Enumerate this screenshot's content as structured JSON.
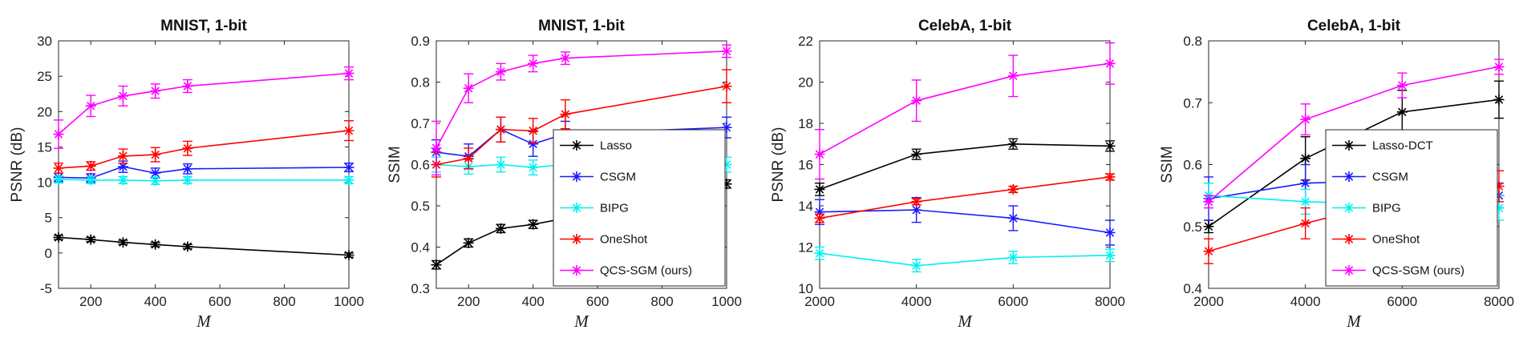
{
  "colors": {
    "Lasso": "#000000",
    "Lasso-DCT": "#000000",
    "CSGM": "#1a1aff",
    "BIPG": "#00f0f0",
    "OneShot": "#ff0000",
    "QCS-SGM (ours)": "#ff00ff"
  },
  "chart_data": [
    {
      "type": "line",
      "title": "MNIST, 1-bit",
      "xlabel": "M",
      "ylabel": "PSNR (dB)",
      "xlim": [
        100,
        1000
      ],
      "ylim": [
        -5,
        30
      ],
      "xticks": [
        200,
        400,
        600,
        800,
        1000
      ],
      "yticks": [
        -5,
        0,
        5,
        10,
        15,
        20,
        25,
        30
      ],
      "x": [
        100,
        200,
        300,
        400,
        500,
        1000
      ],
      "legend": null,
      "series": [
        {
          "name": "Lasso",
          "values": [
            2.2,
            1.9,
            1.5,
            1.2,
            0.9,
            -0.3
          ],
          "errors": [
            0.3,
            0.3,
            0.3,
            0.3,
            0.3,
            0.3
          ]
        },
        {
          "name": "CSGM",
          "values": [
            10.7,
            10.6,
            12.2,
            11.3,
            11.9,
            12.1
          ],
          "errors": [
            0.6,
            0.6,
            0.8,
            0.7,
            0.7,
            0.6
          ]
        },
        {
          "name": "BIPG",
          "values": [
            10.4,
            10.3,
            10.3,
            10.2,
            10.3,
            10.3
          ],
          "errors": [
            0.5,
            0.5,
            0.5,
            0.5,
            0.5,
            0.5
          ]
        },
        {
          "name": "OneShot",
          "values": [
            12.0,
            12.3,
            13.7,
            13.9,
            14.8,
            17.3
          ],
          "errors": [
            0.7,
            0.6,
            1.0,
            1.0,
            1.0,
            1.4
          ]
        },
        {
          "name": "QCS-SGM (ours)",
          "values": [
            16.8,
            20.8,
            22.2,
            22.9,
            23.6,
            25.4
          ],
          "errors": [
            2.0,
            1.5,
            1.4,
            1.0,
            0.9,
            0.9
          ]
        }
      ]
    },
    {
      "type": "line",
      "title": "MNIST, 1-bit",
      "xlabel": "M",
      "ylabel": "SSIM",
      "xlim": [
        100,
        1000
      ],
      "ylim": [
        0.3,
        0.9
      ],
      "xticks": [
        200,
        400,
        600,
        800,
        1000
      ],
      "yticks": [
        0.3,
        0.4,
        0.5,
        0.6,
        0.7,
        0.8,
        0.9
      ],
      "x": [
        100,
        200,
        300,
        400,
        500,
        1000
      ],
      "legend": "bottom-right",
      "series": [
        {
          "name": "Lasso",
          "values": [
            0.357,
            0.41,
            0.445,
            0.455,
            0.47,
            0.553
          ],
          "errors": [
            0.01,
            0.01,
            0.01,
            0.01,
            0.01,
            0.01
          ]
        },
        {
          "name": "CSGM",
          "values": [
            0.63,
            0.62,
            0.685,
            0.65,
            0.675,
            0.69
          ],
          "errors": [
            0.03,
            0.03,
            0.03,
            0.03,
            0.03,
            0.025
          ]
        },
        {
          "name": "BIPG",
          "values": [
            0.6,
            0.595,
            0.6,
            0.593,
            0.6,
            0.6
          ],
          "errors": [
            0.018,
            0.018,
            0.018,
            0.018,
            0.018,
            0.018
          ]
        },
        {
          "name": "OneShot",
          "values": [
            0.6,
            0.615,
            0.685,
            0.682,
            0.722,
            0.79
          ],
          "errors": [
            0.03,
            0.025,
            0.03,
            0.03,
            0.035,
            0.04
          ]
        },
        {
          "name": "QCS-SGM (ours)",
          "values": [
            0.64,
            0.785,
            0.825,
            0.845,
            0.858,
            0.875
          ],
          "errors": [
            0.065,
            0.035,
            0.02,
            0.02,
            0.015,
            0.015
          ]
        }
      ]
    },
    {
      "type": "line",
      "title": "CelebA, 1-bit",
      "xlabel": "M",
      "ylabel": "PSNR (dB)",
      "xlim": [
        2000,
        8000
      ],
      "ylim": [
        10,
        22
      ],
      "xticks": [
        2000,
        4000,
        6000,
        8000
      ],
      "yticks": [
        10,
        12,
        14,
        16,
        18,
        20,
        22
      ],
      "x": [
        2000,
        4000,
        6000,
        8000
      ],
      "legend": null,
      "series": [
        {
          "name": "Lasso",
          "values": [
            14.8,
            16.5,
            17.0,
            16.9
          ],
          "errors": [
            0.3,
            0.25,
            0.25,
            0.25
          ]
        },
        {
          "name": "CSGM",
          "values": [
            13.7,
            13.8,
            13.4,
            12.7
          ],
          "errors": [
            0.6,
            0.6,
            0.6,
            0.6
          ]
        },
        {
          "name": "BIPG",
          "values": [
            11.7,
            11.1,
            11.5,
            11.6
          ],
          "errors": [
            0.3,
            0.3,
            0.3,
            0.3
          ]
        },
        {
          "name": "OneShot",
          "values": [
            13.4,
            14.2,
            14.8,
            15.4
          ],
          "errors": [
            0.2,
            0.15,
            0.15,
            0.15
          ]
        },
        {
          "name": "QCS-SGM (ours)",
          "values": [
            16.5,
            19.1,
            20.3,
            20.9
          ],
          "errors": [
            1.2,
            1.0,
            1.0,
            1.0
          ]
        }
      ]
    },
    {
      "type": "line",
      "title": "CelebA, 1-bit",
      "xlabel": "M",
      "ylabel": "SSIM",
      "xlim": [
        2000,
        8000
      ],
      "ylim": [
        0.4,
        0.8
      ],
      "xticks": [
        2000,
        4000,
        6000,
        8000
      ],
      "yticks": [
        0.4,
        0.5,
        0.6,
        0.7,
        0.8
      ],
      "x": [
        2000,
        4000,
        6000,
        8000
      ],
      "legend": "bottom-right",
      "series": [
        {
          "name": "Lasso-DCT",
          "values": [
            0.5,
            0.61,
            0.685,
            0.705
          ],
          "errors": [
            0.01,
            0.035,
            0.035,
            0.03
          ]
        },
        {
          "name": "CSGM",
          "values": [
            0.545,
            0.57,
            0.575,
            0.55
          ],
          "errors": [
            0.035,
            0.03,
            0.025,
            0.02
          ]
        },
        {
          "name": "BIPG",
          "values": [
            0.55,
            0.54,
            0.535,
            0.53
          ],
          "errors": [
            0.02,
            0.02,
            0.02,
            0.02
          ]
        },
        {
          "name": "OneShot",
          "values": [
            0.46,
            0.505,
            0.545,
            0.565
          ],
          "errors": [
            0.02,
            0.025,
            0.025,
            0.025
          ]
        },
        {
          "name": "QCS-SGM (ours)",
          "values": [
            0.54,
            0.673,
            0.728,
            0.758
          ],
          "errors": [
            0.01,
            0.025,
            0.02,
            0.012
          ]
        }
      ]
    }
  ]
}
